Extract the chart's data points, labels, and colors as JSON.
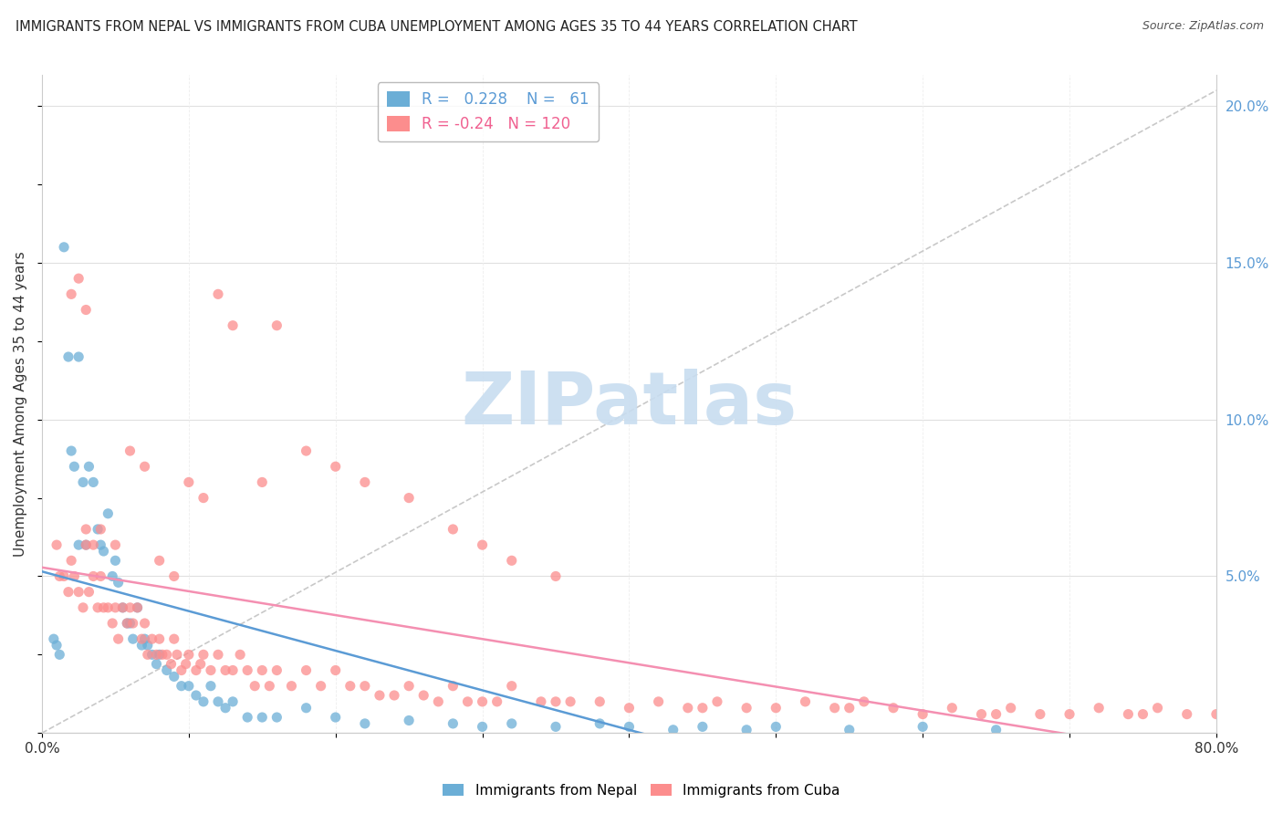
{
  "title": "IMMIGRANTS FROM NEPAL VS IMMIGRANTS FROM CUBA UNEMPLOYMENT AMONG AGES 35 TO 44 YEARS CORRELATION CHART",
  "source": "Source: ZipAtlas.com",
  "ylabel": "Unemployment Among Ages 35 to 44 years",
  "xlim": [
    0.0,
    0.8
  ],
  "ylim": [
    0.0,
    0.21
  ],
  "yticks_right": [
    0.0,
    0.05,
    0.1,
    0.15,
    0.2
  ],
  "yticklabels_right": [
    "",
    "5.0%",
    "10.0%",
    "15.0%",
    "20.0%"
  ],
  "nepal_color": "#6baed6",
  "cuba_color": "#fc8d8d",
  "nepal_R": 0.228,
  "nepal_N": 61,
  "cuba_R": -0.24,
  "cuba_N": 120,
  "nepal_scatter_x": [
    0.008,
    0.01,
    0.012,
    0.015,
    0.018,
    0.02,
    0.022,
    0.025,
    0.025,
    0.028,
    0.03,
    0.032,
    0.035,
    0.038,
    0.04,
    0.042,
    0.045,
    0.048,
    0.05,
    0.052,
    0.055,
    0.058,
    0.06,
    0.062,
    0.065,
    0.068,
    0.07,
    0.072,
    0.075,
    0.078,
    0.08,
    0.085,
    0.09,
    0.095,
    0.1,
    0.105,
    0.11,
    0.115,
    0.12,
    0.125,
    0.13,
    0.14,
    0.15,
    0.16,
    0.18,
    0.2,
    0.22,
    0.25,
    0.28,
    0.3,
    0.32,
    0.35,
    0.38,
    0.4,
    0.43,
    0.45,
    0.48,
    0.5,
    0.55,
    0.6,
    0.65
  ],
  "nepal_scatter_y": [
    0.03,
    0.028,
    0.025,
    0.155,
    0.12,
    0.09,
    0.085,
    0.12,
    0.06,
    0.08,
    0.06,
    0.085,
    0.08,
    0.065,
    0.06,
    0.058,
    0.07,
    0.05,
    0.055,
    0.048,
    0.04,
    0.035,
    0.035,
    0.03,
    0.04,
    0.028,
    0.03,
    0.028,
    0.025,
    0.022,
    0.025,
    0.02,
    0.018,
    0.015,
    0.015,
    0.012,
    0.01,
    0.015,
    0.01,
    0.008,
    0.01,
    0.005,
    0.005,
    0.005,
    0.008,
    0.005,
    0.003,
    0.004,
    0.003,
    0.002,
    0.003,
    0.002,
    0.003,
    0.002,
    0.001,
    0.002,
    0.001,
    0.002,
    0.001,
    0.002,
    0.001
  ],
  "cuba_scatter_x": [
    0.01,
    0.012,
    0.015,
    0.018,
    0.02,
    0.022,
    0.025,
    0.028,
    0.03,
    0.032,
    0.035,
    0.038,
    0.04,
    0.042,
    0.045,
    0.048,
    0.05,
    0.052,
    0.055,
    0.058,
    0.06,
    0.062,
    0.065,
    0.068,
    0.07,
    0.072,
    0.075,
    0.078,
    0.08,
    0.082,
    0.085,
    0.088,
    0.09,
    0.092,
    0.095,
    0.098,
    0.1,
    0.105,
    0.108,
    0.11,
    0.115,
    0.12,
    0.125,
    0.13,
    0.135,
    0.14,
    0.145,
    0.15,
    0.155,
    0.16,
    0.17,
    0.18,
    0.19,
    0.2,
    0.21,
    0.22,
    0.23,
    0.24,
    0.25,
    0.26,
    0.27,
    0.28,
    0.29,
    0.3,
    0.31,
    0.32,
    0.34,
    0.35,
    0.36,
    0.38,
    0.4,
    0.42,
    0.44,
    0.45,
    0.46,
    0.48,
    0.5,
    0.52,
    0.54,
    0.55,
    0.56,
    0.58,
    0.6,
    0.62,
    0.64,
    0.65,
    0.66,
    0.68,
    0.7,
    0.72,
    0.74,
    0.75,
    0.76,
    0.78,
    0.8,
    0.03,
    0.035,
    0.04,
    0.05,
    0.06,
    0.07,
    0.08,
    0.09,
    0.1,
    0.11,
    0.12,
    0.13,
    0.15,
    0.16,
    0.18,
    0.2,
    0.22,
    0.25,
    0.28,
    0.3,
    0.32,
    0.35,
    0.02,
    0.025,
    0.03
  ],
  "cuba_scatter_y": [
    0.06,
    0.05,
    0.05,
    0.045,
    0.055,
    0.05,
    0.045,
    0.04,
    0.06,
    0.045,
    0.05,
    0.04,
    0.05,
    0.04,
    0.04,
    0.035,
    0.04,
    0.03,
    0.04,
    0.035,
    0.04,
    0.035,
    0.04,
    0.03,
    0.035,
    0.025,
    0.03,
    0.025,
    0.03,
    0.025,
    0.025,
    0.022,
    0.03,
    0.025,
    0.02,
    0.022,
    0.025,
    0.02,
    0.022,
    0.025,
    0.02,
    0.025,
    0.02,
    0.02,
    0.025,
    0.02,
    0.015,
    0.02,
    0.015,
    0.02,
    0.015,
    0.02,
    0.015,
    0.02,
    0.015,
    0.015,
    0.012,
    0.012,
    0.015,
    0.012,
    0.01,
    0.015,
    0.01,
    0.01,
    0.01,
    0.015,
    0.01,
    0.01,
    0.01,
    0.01,
    0.008,
    0.01,
    0.008,
    0.008,
    0.01,
    0.008,
    0.008,
    0.01,
    0.008,
    0.008,
    0.01,
    0.008,
    0.006,
    0.008,
    0.006,
    0.006,
    0.008,
    0.006,
    0.006,
    0.008,
    0.006,
    0.006,
    0.008,
    0.006,
    0.006,
    0.065,
    0.06,
    0.065,
    0.06,
    0.09,
    0.085,
    0.055,
    0.05,
    0.08,
    0.075,
    0.14,
    0.13,
    0.08,
    0.13,
    0.09,
    0.085,
    0.08,
    0.075,
    0.065,
    0.06,
    0.055,
    0.05,
    0.14,
    0.145,
    0.135
  ]
}
